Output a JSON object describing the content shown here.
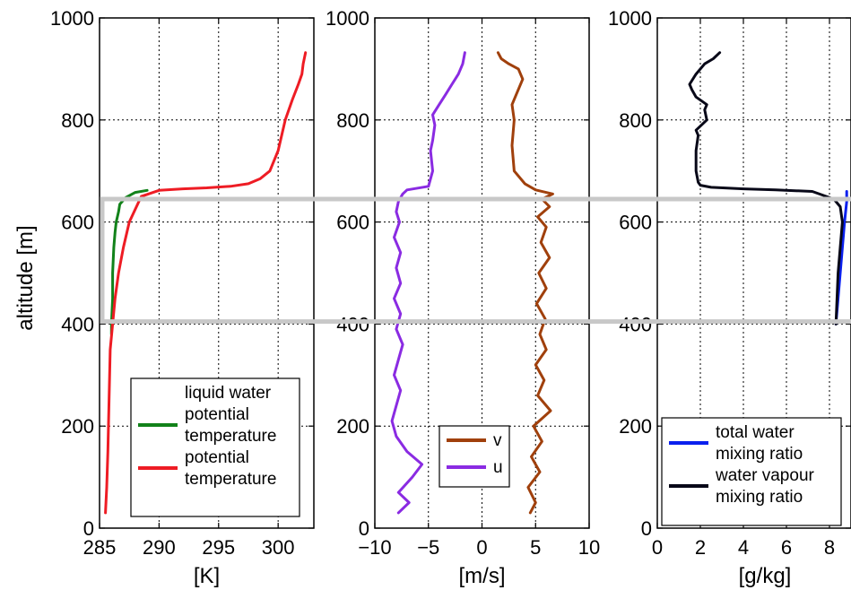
{
  "colors": {
    "green": "#12821a",
    "red": "#ee1c24",
    "brown": "#a0400c",
    "purple": "#8a2be2",
    "blue": "#0a20ee",
    "black": "#080818",
    "highlight": "#c8c8c8"
  },
  "highlight_band": {
    "ymin": 405,
    "ymax": 645
  },
  "chart_data": [
    {
      "type": "line",
      "ylabel": "altitude [m]",
      "xlabel": "[K]",
      "xlim": [
        285,
        303
      ],
      "ylim": [
        0,
        1000
      ],
      "xticks": [
        285,
        290,
        295,
        300
      ],
      "xtick_labels": [
        "285",
        "290",
        "295",
        "300"
      ],
      "yticks": [
        0,
        200,
        400,
        600,
        800,
        1000
      ],
      "ytick_labels": [
        "0",
        "200",
        "400",
        "600",
        "800",
        "1000"
      ],
      "grid": true,
      "legend_position": "bottom-right",
      "series": [
        {
          "name": "liquid water potential temperature",
          "legend_lines": [
            "liquid water",
            "potential",
            "temperature"
          ],
          "color": "#12821a",
          "x": [
            286.0,
            286.0,
            286.1,
            286.1,
            286.2,
            286.3,
            286.4,
            286.6,
            286.7,
            287.2,
            288.0,
            289.0
          ],
          "y": [
            380,
            400,
            450,
            500,
            550,
            580,
            600,
            620,
            635,
            648,
            658,
            662
          ]
        },
        {
          "name": "potential temperature",
          "legend_lines": [
            "potential",
            "temperature"
          ],
          "color": "#ee1c24",
          "x": [
            285.5,
            285.6,
            285.7,
            285.8,
            285.9,
            286.1,
            286.3,
            286.6,
            287.0,
            287.5,
            288.5,
            290,
            292,
            294,
            296,
            297.5,
            298.5,
            299.3,
            300.0,
            300.6,
            301.2,
            301.7,
            302.0,
            302.1,
            302.3
          ],
          "y": [
            30,
            80,
            150,
            250,
            350,
            400,
            450,
            500,
            550,
            600,
            650,
            662,
            665,
            667,
            670,
            675,
            685,
            700,
            740,
            800,
            840,
            870,
            890,
            910,
            932
          ]
        }
      ]
    },
    {
      "type": "line",
      "xlabel": "[m/s]",
      "xlim": [
        -10,
        10
      ],
      "ylim": [
        0,
        1000
      ],
      "xticks": [
        -10,
        -5,
        0,
        5,
        10
      ],
      "xtick_labels": [
        "−10",
        "−5",
        "0",
        "5",
        "10"
      ],
      "yticks": [
        0,
        200,
        400,
        600,
        800,
        1000
      ],
      "ytick_labels": [
        "0",
        "200",
        "400",
        "600",
        "800",
        "1000"
      ],
      "grid": true,
      "legend_position": "bottom-center",
      "series": [
        {
          "name": "v",
          "legend_lines": [
            "v"
          ],
          "color": "#a0400c",
          "x": [
            4.5,
            5.0,
            4.3,
            5.4,
            4.6,
            5.6,
            4.8,
            6.4,
            5.2,
            5.8,
            5.0,
            6.0,
            5.4,
            5.9,
            5.1,
            6.0,
            5.3,
            6.3,
            5.5,
            6.0,
            5.2,
            6.3,
            5.6,
            6.6,
            5.0,
            4.0,
            3.0,
            2.8,
            3.0,
            2.8,
            3.2,
            3.8,
            3.4,
            2.5,
            1.8,
            1.5
          ],
          "y": [
            30,
            50,
            80,
            110,
            140,
            170,
            200,
            230,
            260,
            290,
            320,
            350,
            380,
            410,
            440,
            470,
            500,
            530,
            560,
            590,
            610,
            630,
            645,
            655,
            663,
            675,
            700,
            750,
            800,
            830,
            850,
            880,
            900,
            910,
            920,
            932
          ]
        },
        {
          "name": "u",
          "legend_lines": [
            "u"
          ],
          "color": "#8a2be2",
          "x": [
            -7.8,
            -6.8,
            -7.8,
            -6.5,
            -5.6,
            -7.0,
            -8.0,
            -8.4,
            -8.0,
            -7.6,
            -8.2,
            -7.8,
            -7.4,
            -8.0,
            -7.6,
            -8.2,
            -7.6,
            -8.0,
            -7.6,
            -8.2,
            -7.7,
            -8.0,
            -7.8,
            -7.4,
            -7.0,
            -5.0,
            -4.6,
            -4.8,
            -4.6,
            -4.4,
            -4.6,
            -4.0,
            -3.4,
            -2.8,
            -2.2,
            -1.8,
            -1.6
          ],
          "y": [
            30,
            50,
            70,
            100,
            125,
            150,
            180,
            210,
            240,
            270,
            300,
            330,
            360,
            390,
            420,
            450,
            480,
            510,
            540,
            570,
            600,
            620,
            640,
            655,
            663,
            670,
            700,
            740,
            760,
            790,
            810,
            830,
            850,
            870,
            890,
            910,
            932
          ]
        }
      ]
    },
    {
      "type": "line",
      "xlabel": "[g/kg]",
      "xlim": [
        0,
        9
      ],
      "ylim": [
        0,
        1000
      ],
      "xticks": [
        0,
        2,
        4,
        6,
        8
      ],
      "xtick_labels": [
        "0",
        "2",
        "4",
        "6",
        "8"
      ],
      "yticks": [
        0,
        200,
        400,
        600,
        800,
        1000
      ],
      "ytick_labels": [
        "0",
        "200",
        "400",
        "600",
        "800",
        "1000"
      ],
      "grid": true,
      "legend_position": "bottom-right",
      "series": [
        {
          "name": "total water mixing ratio",
          "legend_lines": [
            "total water",
            "mixing ratio"
          ],
          "color": "#0a20ee",
          "x": [
            8.3,
            8.4,
            8.5,
            8.6,
            8.7,
            8.8,
            8.8
          ],
          "y": [
            400,
            450,
            500,
            550,
            600,
            640,
            660
          ]
        },
        {
          "name": "water vapour mixing ratio",
          "legend_lines": [
            "water vapour",
            "mixing ratio"
          ],
          "color": "#080818",
          "x": [
            8.3,
            8.35,
            8.4,
            8.5,
            8.6,
            8.5,
            8.2,
            7.2,
            5.5,
            4.0,
            2.5,
            2.0,
            1.9,
            1.8,
            1.8,
            1.9,
            1.8,
            2.3,
            2.2,
            2.3,
            1.8,
            1.6,
            1.5,
            1.8,
            2.2,
            2.6,
            2.9
          ],
          "y": [
            400,
            450,
            500,
            550,
            600,
            630,
            645,
            660,
            663,
            665,
            668,
            672,
            678,
            700,
            740,
            770,
            780,
            800,
            820,
            830,
            845,
            860,
            870,
            890,
            910,
            920,
            932
          ]
        }
      ]
    }
  ]
}
